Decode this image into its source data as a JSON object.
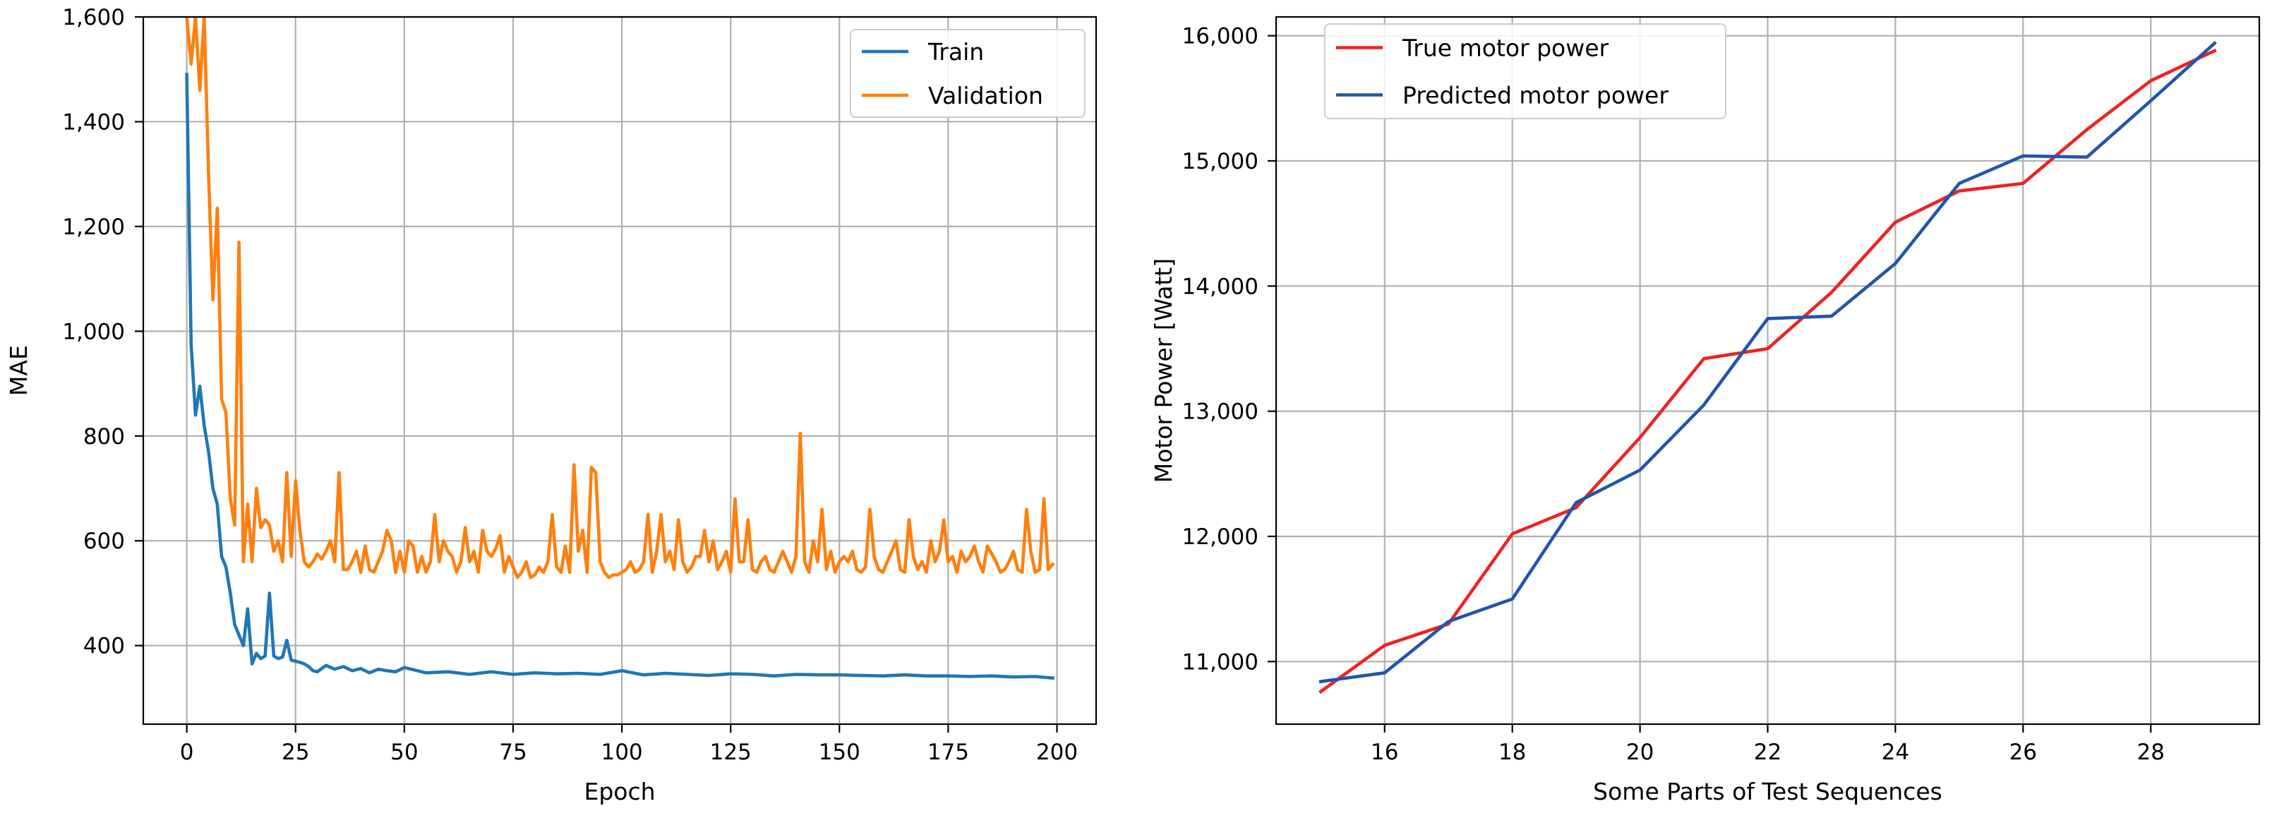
{
  "chart_data": [
    {
      "type": "line",
      "title": "",
      "xlabel": "Epoch",
      "ylabel": "MAE",
      "xlim": [
        -10,
        209
      ],
      "ylim": [
        250,
        1600
      ],
      "xticks": [
        0,
        25,
        50,
        75,
        100,
        125,
        150,
        175,
        200
      ],
      "xtick_labels": [
        "0",
        "25",
        "50",
        "75",
        "100",
        "125",
        "150",
        "175",
        "200"
      ],
      "yticks": [
        400,
        600,
        800,
        1000,
        1200,
        1400,
        1600
      ],
      "ytick_labels": [
        "400",
        "600",
        "800",
        "1,000",
        "1,200",
        "1,400",
        "1,600"
      ],
      "grid": true,
      "legend_position": "top-right",
      "series": [
        {
          "name": "Train",
          "color": "#1f77b4",
          "x": [
            0,
            1,
            2,
            3,
            4,
            5,
            6,
            7,
            8,
            9,
            10,
            11,
            12,
            13,
            14,
            15,
            16,
            17,
            18,
            19,
            20,
            21,
            22,
            23,
            24,
            25,
            26,
            27,
            28,
            29,
            30,
            32,
            34,
            36,
            38,
            40,
            42,
            44,
            46,
            48,
            50,
            55,
            60,
            65,
            70,
            75,
            80,
            85,
            90,
            95,
            100,
            105,
            110,
            115,
            120,
            125,
            130,
            135,
            140,
            145,
            150,
            155,
            160,
            165,
            170,
            175,
            180,
            185,
            190,
            195,
            199
          ],
          "values": [
            1490,
            975,
            840,
            895,
            820,
            770,
            700,
            670,
            570,
            550,
            500,
            440,
            420,
            400,
            470,
            365,
            385,
            375,
            380,
            500,
            380,
            375,
            378,
            410,
            372,
            370,
            368,
            365,
            360,
            352,
            350,
            362,
            355,
            360,
            352,
            356,
            348,
            355,
            352,
            350,
            358,
            348,
            350,
            345,
            350,
            345,
            348,
            346,
            347,
            345,
            352,
            344,
            347,
            345,
            343,
            346,
            345,
            342,
            345,
            344,
            344,
            343,
            342,
            344,
            342,
            342,
            341,
            342,
            340,
            341,
            338
          ]
        },
        {
          "name": "Validation",
          "color": "#ff7f0e",
          "x": [
            0,
            1,
            2,
            3,
            4,
            5,
            6,
            7,
            8,
            9,
            10,
            11,
            12,
            13,
            14,
            15,
            16,
            17,
            18,
            19,
            20,
            21,
            22,
            23,
            24,
            25,
            26,
            27,
            28,
            29,
            30,
            31,
            32,
            33,
            34,
            35,
            36,
            37,
            38,
            39,
            40,
            41,
            42,
            43,
            44,
            45,
            46,
            47,
            48,
            49,
            50,
            51,
            52,
            53,
            54,
            55,
            56,
            57,
            58,
            59,
            60,
            61,
            62,
            63,
            64,
            65,
            66,
            67,
            68,
            69,
            70,
            71,
            72,
            73,
            74,
            75,
            76,
            77,
            78,
            79,
            80,
            81,
            82,
            83,
            84,
            85,
            86,
            87,
            88,
            89,
            90,
            91,
            92,
            93,
            94,
            95,
            96,
            97,
            98,
            99,
            100,
            101,
            102,
            103,
            104,
            105,
            106,
            107,
            108,
            109,
            110,
            111,
            112,
            113,
            114,
            115,
            116,
            117,
            118,
            119,
            120,
            121,
            122,
            123,
            124,
            125,
            126,
            127,
            128,
            129,
            130,
            131,
            132,
            133,
            134,
            135,
            136,
            137,
            138,
            139,
            140,
            141,
            142,
            143,
            144,
            145,
            146,
            147,
            148,
            149,
            150,
            151,
            152,
            153,
            154,
            155,
            156,
            157,
            158,
            159,
            160,
            161,
            162,
            163,
            164,
            165,
            166,
            167,
            168,
            169,
            170,
            171,
            172,
            173,
            174,
            175,
            176,
            177,
            178,
            179,
            180,
            181,
            182,
            183,
            184,
            185,
            186,
            187,
            188,
            189,
            190,
            191,
            192,
            193,
            194,
            195,
            196,
            197,
            198,
            199
          ],
          "values": [
            1600,
            1510,
            1600,
            1460,
            1600,
            1300,
            1060,
            1235,
            870,
            845,
            680,
            630,
            1170,
            560,
            670,
            560,
            700,
            625,
            640,
            630,
            580,
            600,
            560,
            730,
            570,
            715,
            620,
            560,
            550,
            560,
            575,
            565,
            580,
            600,
            560,
            730,
            545,
            545,
            560,
            580,
            540,
            590,
            545,
            540,
            560,
            580,
            620,
            600,
            540,
            580,
            540,
            600,
            590,
            540,
            570,
            540,
            560,
            650,
            560,
            600,
            580,
            570,
            540,
            560,
            625,
            560,
            580,
            540,
            620,
            580,
            570,
            585,
            610,
            540,
            570,
            550,
            530,
            540,
            560,
            530,
            535,
            550,
            540,
            560,
            650,
            550,
            540,
            590,
            540,
            745,
            580,
            620,
            540,
            740,
            730,
            560,
            540,
            530,
            535,
            535,
            540,
            545,
            560,
            540,
            545,
            560,
            650,
            540,
            580,
            650,
            560,
            580,
            545,
            640,
            560,
            540,
            550,
            570,
            570,
            620,
            560,
            600,
            545,
            560,
            580,
            540,
            680,
            560,
            560,
            640,
            545,
            540,
            560,
            570,
            545,
            540,
            560,
            580,
            560,
            540,
            570,
            805,
            560,
            540,
            600,
            560,
            660,
            545,
            580,
            540,
            560,
            570,
            560,
            580,
            545,
            540,
            550,
            660,
            570,
            545,
            540,
            560,
            580,
            600,
            545,
            540,
            640,
            570,
            545,
            560,
            540,
            600,
            560,
            580,
            640,
            560,
            570,
            540,
            580,
            560,
            570,
            590,
            560,
            540,
            590,
            575,
            560,
            540,
            545,
            560,
            580,
            545,
            540,
            660,
            580,
            540,
            545,
            680,
            545,
            555
          ]
        }
      ]
    },
    {
      "type": "line",
      "title": "",
      "xlabel": "Some Parts of Test Sequences",
      "ylabel": "Motor Power [Watt]",
      "xlim": [
        14.3,
        29.7
      ],
      "ylim": [
        10500,
        16150
      ],
      "xticks": [
        16,
        18,
        20,
        22,
        24,
        26,
        28
      ],
      "xtick_labels": [
        "16",
        "18",
        "20",
        "22",
        "24",
        "26",
        "28"
      ],
      "yticks": [
        11000,
        12000,
        13000,
        14000,
        15000,
        16000
      ],
      "ytick_labels": [
        "11,000",
        "12,000",
        "13,000",
        "14,000",
        "15,000",
        "16,000"
      ],
      "grid": true,
      "legend_position": "top-left",
      "categories": [
        15,
        16,
        17,
        18,
        19,
        20,
        21,
        22,
        23,
        24,
        25,
        26,
        27,
        28,
        29
      ],
      "series": [
        {
          "name": "True motor power",
          "color": "#ee2222",
          "values": [
            10760,
            11130,
            11300,
            12020,
            12230,
            12790,
            13420,
            13500,
            13950,
            14510,
            14760,
            14820,
            15250,
            15640,
            15880
          ]
        },
        {
          "name": "Predicted motor power",
          "color": "#2255aa",
          "values": [
            10840,
            10910,
            11320,
            11500,
            12270,
            12530,
            13050,
            13740,
            13760,
            14180,
            14820,
            15040,
            15030,
            15480,
            15940
          ]
        }
      ]
    }
  ]
}
